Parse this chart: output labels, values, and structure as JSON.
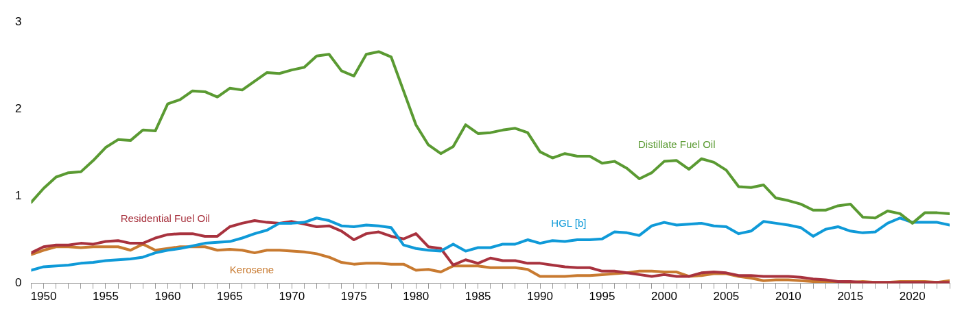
{
  "chart_data": {
    "type": "line",
    "x": [
      1949,
      1950,
      1951,
      1952,
      1953,
      1954,
      1955,
      1956,
      1957,
      1958,
      1959,
      1960,
      1961,
      1962,
      1963,
      1964,
      1965,
      1966,
      1967,
      1968,
      1969,
      1970,
      1971,
      1972,
      1973,
      1974,
      1975,
      1976,
      1977,
      1978,
      1979,
      1980,
      1981,
      1982,
      1983,
      1984,
      1985,
      1986,
      1987,
      1988,
      1989,
      1990,
      1991,
      1992,
      1993,
      1994,
      1995,
      1996,
      1997,
      1998,
      1999,
      2000,
      2001,
      2002,
      2003,
      2004,
      2005,
      2006,
      2007,
      2008,
      2009,
      2010,
      2011,
      2012,
      2013,
      2014,
      2015,
      2016,
      2017,
      2018,
      2019,
      2020,
      2021,
      2022,
      2023
    ],
    "series": [
      {
        "name": "Distillate Fuel Oil",
        "color": "#5a9a32",
        "values": [
          0.93,
          1.09,
          1.22,
          1.27,
          1.28,
          1.41,
          1.56,
          1.65,
          1.64,
          1.76,
          1.75,
          2.06,
          2.11,
          2.21,
          2.2,
          2.14,
          2.24,
          2.22,
          2.32,
          2.42,
          2.41,
          2.45,
          2.48,
          2.61,
          2.63,
          2.44,
          2.38,
          2.63,
          2.66,
          2.6,
          2.21,
          1.82,
          1.59,
          1.49,
          1.57,
          1.82,
          1.72,
          1.73,
          1.76,
          1.78,
          1.73,
          1.51,
          1.44,
          1.49,
          1.46,
          1.46,
          1.38,
          1.4,
          1.32,
          1.2,
          1.27,
          1.4,
          1.41,
          1.31,
          1.43,
          1.39,
          1.3,
          1.11,
          1.1,
          1.13,
          0.98,
          0.95,
          0.91,
          0.84,
          0.84,
          0.89,
          0.91,
          0.76,
          0.75,
          0.83,
          0.8,
          0.69,
          0.81,
          0.81,
          0.8
        ]
      },
      {
        "name": "HGL [b]",
        "color": "#0f9ad8",
        "values": [
          0.15,
          0.19,
          0.2,
          0.21,
          0.23,
          0.24,
          0.26,
          0.27,
          0.28,
          0.3,
          0.35,
          0.38,
          0.4,
          0.43,
          0.46,
          0.47,
          0.48,
          0.52,
          0.57,
          0.61,
          0.69,
          0.69,
          0.7,
          0.75,
          0.72,
          0.66,
          0.65,
          0.67,
          0.66,
          0.64,
          0.44,
          0.4,
          0.38,
          0.37,
          0.45,
          0.37,
          0.41,
          0.41,
          0.45,
          0.45,
          0.5,
          0.46,
          0.49,
          0.48,
          0.5,
          0.5,
          0.51,
          0.59,
          0.58,
          0.55,
          0.66,
          0.7,
          0.67,
          0.68,
          0.69,
          0.66,
          0.65,
          0.57,
          0.6,
          0.71,
          0.69,
          0.67,
          0.64,
          0.54,
          0.62,
          0.65,
          0.6,
          0.58,
          0.59,
          0.69,
          0.75,
          0.7,
          0.7,
          0.7,
          0.67
        ]
      },
      {
        "name": "Residential Fuel Oil",
        "color": "#a8323e",
        "values": [
          0.35,
          0.42,
          0.44,
          0.44,
          0.46,
          0.45,
          0.48,
          0.49,
          0.46,
          0.46,
          0.52,
          0.56,
          0.57,
          0.57,
          0.54,
          0.54,
          0.65,
          0.69,
          0.72,
          0.7,
          0.69,
          0.71,
          0.68,
          0.65,
          0.66,
          0.6,
          0.5,
          0.57,
          0.59,
          0.54,
          0.51,
          0.57,
          0.42,
          0.4,
          0.21,
          0.27,
          0.23,
          0.29,
          0.26,
          0.26,
          0.23,
          0.23,
          0.21,
          0.19,
          0.18,
          0.18,
          0.14,
          0.14,
          0.12,
          0.1,
          0.08,
          0.1,
          0.08,
          0.08,
          0.12,
          0.13,
          0.12,
          0.09,
          0.09,
          0.08,
          0.08,
          0.08,
          0.07,
          0.05,
          0.04,
          0.02,
          0.02,
          0.01,
          0.01,
          0.01,
          0.01,
          0.01,
          0.01,
          0.01,
          0.01
        ]
      },
      {
        "name": "Kerosene",
        "color": "#c87a30",
        "values": [
          0.33,
          0.38,
          0.42,
          0.42,
          0.41,
          0.42,
          0.42,
          0.42,
          0.38,
          0.45,
          0.38,
          0.4,
          0.42,
          0.42,
          0.42,
          0.38,
          0.39,
          0.38,
          0.35,
          0.38,
          0.38,
          0.37,
          0.36,
          0.34,
          0.3,
          0.24,
          0.22,
          0.23,
          0.23,
          0.22,
          0.22,
          0.15,
          0.16,
          0.13,
          0.2,
          0.2,
          0.2,
          0.18,
          0.18,
          0.18,
          0.16,
          0.08,
          0.08,
          0.08,
          0.09,
          0.09,
          0.1,
          0.11,
          0.12,
          0.14,
          0.14,
          0.13,
          0.13,
          0.08,
          0.09,
          0.11,
          0.11,
          0.08,
          0.06,
          0.03,
          0.04,
          0.04,
          0.03,
          0.02,
          0.02,
          0.02,
          0.01,
          0.02,
          0.01,
          0.01,
          0.02,
          0.02,
          0.02,
          0.01,
          0.03
        ]
      }
    ],
    "xlim": [
      1949,
      2023
    ],
    "xticks": [
      {
        "value": 1949,
        "label": null
      },
      1950,
      {
        "value": 1951,
        "label": null
      },
      {
        "value": 1952,
        "label": null
      },
      {
        "value": 1953,
        "label": null
      },
      {
        "value": 1954,
        "label": null
      },
      1955,
      {
        "value": 1956,
        "label": null
      },
      {
        "value": 1957,
        "label": null
      },
      {
        "value": 1958,
        "label": null
      },
      {
        "value": 1959,
        "label": null
      },
      1960,
      {
        "value": 1961,
        "label": null
      },
      {
        "value": 1962,
        "label": null
      },
      {
        "value": 1963,
        "label": null
      },
      {
        "value": 1964,
        "label": null
      },
      1965,
      {
        "value": 1966,
        "label": null
      },
      {
        "value": 1967,
        "label": null
      },
      {
        "value": 1968,
        "label": null
      },
      {
        "value": 1969,
        "label": null
      },
      1970,
      {
        "value": 1971,
        "label": null
      },
      {
        "value": 1972,
        "label": null
      },
      {
        "value": 1973,
        "label": null
      },
      {
        "value": 1974,
        "label": null
      },
      1975,
      {
        "value": 1976,
        "label": null
      },
      {
        "value": 1977,
        "label": null
      },
      {
        "value": 1978,
        "label": null
      },
      {
        "value": 1979,
        "label": null
      },
      1980,
      {
        "value": 1981,
        "label": null
      },
      {
        "value": 1982,
        "label": null
      },
      {
        "value": 1983,
        "label": null
      },
      {
        "value": 1984,
        "label": null
      },
      1985,
      {
        "value": 1986,
        "label": null
      },
      {
        "value": 1987,
        "label": null
      },
      {
        "value": 1988,
        "label": null
      },
      {
        "value": 1989,
        "label": null
      },
      1990,
      {
        "value": 1991,
        "label": null
      },
      {
        "value": 1992,
        "label": null
      },
      {
        "value": 1993,
        "label": null
      },
      {
        "value": 1994,
        "label": null
      },
      1995,
      {
        "value": 1996,
        "label": null
      },
      {
        "value": 1997,
        "label": null
      },
      {
        "value": 1998,
        "label": null
      },
      {
        "value": 1999,
        "label": null
      },
      2000,
      {
        "value": 2001,
        "label": null
      },
      {
        "value": 2002,
        "label": null
      },
      {
        "value": 2003,
        "label": null
      },
      {
        "value": 2004,
        "label": null
      },
      2005,
      {
        "value": 2006,
        "label": null
      },
      {
        "value": 2007,
        "label": null
      },
      {
        "value": 2008,
        "label": null
      },
      {
        "value": 2009,
        "label": null
      },
      2010,
      {
        "value": 2011,
        "label": null
      },
      {
        "value": 2012,
        "label": null
      },
      {
        "value": 2013,
        "label": null
      },
      {
        "value": 2014,
        "label": null
      },
      2015,
      {
        "value": 2016,
        "label": null
      },
      {
        "value": 2017,
        "label": null
      },
      {
        "value": 2018,
        "label": null
      },
      {
        "value": 2019,
        "label": null
      },
      2020,
      {
        "value": 2021,
        "label": null
      },
      {
        "value": 2022,
        "label": null
      },
      {
        "value": 2023,
        "label": null
      }
    ],
    "ylim": [
      0,
      3
    ],
    "yticks": [
      0,
      1,
      2,
      3
    ],
    "grid": false,
    "legend": false,
    "marker": "none",
    "line_style": "solid"
  }
}
